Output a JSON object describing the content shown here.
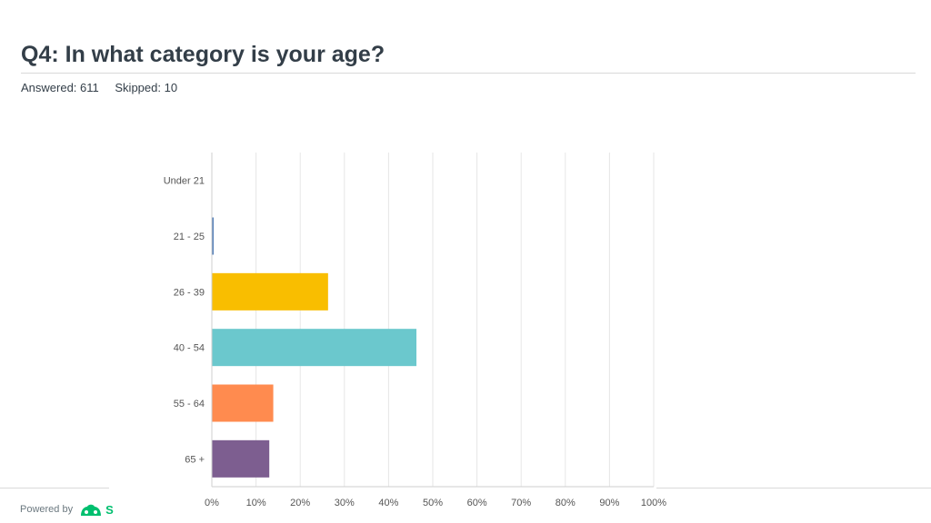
{
  "header": {
    "title": "Q4: In what category is your age?",
    "answered": "Answered: 611",
    "skipped": "Skipped: 10"
  },
  "footer": {
    "powered_by": "Powered by",
    "logo_letter": "S",
    "logo_icon": "surveymonkey-logo-icon"
  },
  "chart_data": {
    "type": "bar",
    "orientation": "horizontal",
    "categories": [
      "Under 21",
      "21 - 25",
      "26 - 39",
      "40 - 54",
      "55 - 64",
      "65 +"
    ],
    "values": [
      0,
      0.3,
      26.2,
      46.2,
      13.8,
      12.9
    ],
    "colors": [
      "#6bc8cd",
      "#507cb6",
      "#f9be00",
      "#6bc8cd",
      "#ff8b4f",
      "#7d5e90"
    ],
    "xlim": [
      0,
      100
    ],
    "xticks": [
      "0%",
      "10%",
      "20%",
      "30%",
      "40%",
      "50%",
      "60%",
      "70%",
      "80%",
      "90%",
      "100%"
    ],
    "grid": true
  }
}
